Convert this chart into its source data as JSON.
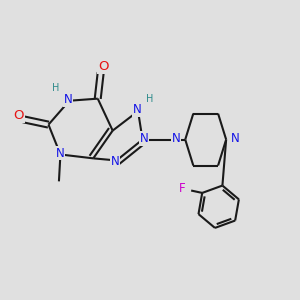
{
  "bg": "#e0e0e0",
  "bc": "#1a1a1a",
  "Nc": "#1414e6",
  "Oc": "#e61414",
  "Hc": "#2e8b8b",
  "Fc": "#cc00cc",
  "lw": 1.5,
  "fs": 8.5,
  "fsh": 7.0,
  "dbo": 0.1,
  "xlim": [
    0,
    10
  ],
  "ylim": [
    0,
    10
  ]
}
